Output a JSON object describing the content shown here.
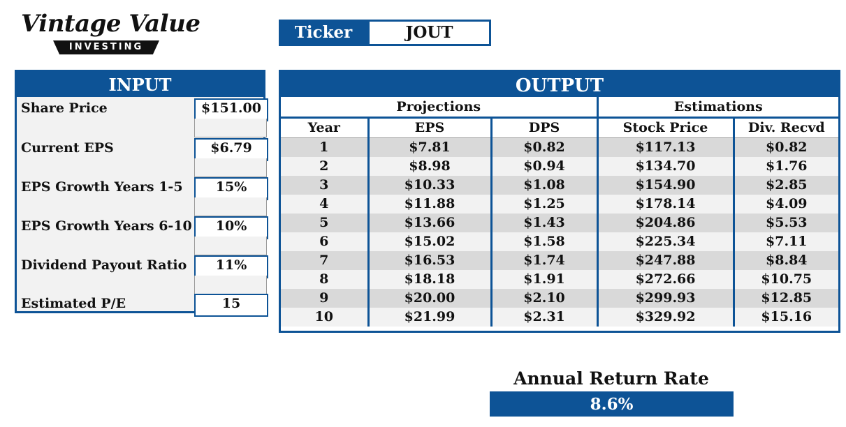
{
  "brand": {
    "script": "Vintage Value",
    "banner": "INVESTING"
  },
  "ticker": {
    "label": "Ticker",
    "value": "JOUT"
  },
  "input": {
    "title": "INPUT",
    "fields": [
      {
        "label": "Share Price",
        "value": "$151.00"
      },
      {
        "label": "Current EPS",
        "value": "$6.79"
      },
      {
        "label": "EPS Growth Years 1-5",
        "value": "15%"
      },
      {
        "label": "EPS Growth Years 6-10",
        "value": "10%"
      },
      {
        "label": "Dividend Payout Ratio",
        "value": "11%"
      },
      {
        "label": "Estimated P/E",
        "value": "15"
      }
    ]
  },
  "output": {
    "title": "OUTPUT",
    "groups": {
      "projections": "Projections",
      "estimations": "Estimations"
    },
    "columns": [
      "Year",
      "EPS",
      "DPS",
      "Stock Price",
      "Div. Recvd"
    ],
    "rows": [
      [
        "1",
        "$7.81",
        "$0.82",
        "$117.13",
        "$0.82"
      ],
      [
        "2",
        "$8.98",
        "$0.94",
        "$134.70",
        "$1.76"
      ],
      [
        "3",
        "$10.33",
        "$1.08",
        "$154.90",
        "$2.85"
      ],
      [
        "4",
        "$11.88",
        "$1.25",
        "$178.14",
        "$4.09"
      ],
      [
        "5",
        "$13.66",
        "$1.43",
        "$204.86",
        "$5.53"
      ],
      [
        "6",
        "$15.02",
        "$1.58",
        "$225.34",
        "$7.11"
      ],
      [
        "7",
        "$16.53",
        "$1.74",
        "$247.88",
        "$8.84"
      ],
      [
        "8",
        "$18.18",
        "$1.91",
        "$272.66",
        "$10.75"
      ],
      [
        "9",
        "$20.00",
        "$2.10",
        "$299.93",
        "$12.85"
      ],
      [
        "10",
        "$21.99",
        "$2.31",
        "$329.92",
        "$15.16"
      ]
    ]
  },
  "annual_return": {
    "label": "Annual Return Rate",
    "value": "8.6%"
  },
  "colors": {
    "accent": "#0d5396",
    "row_shade": "#d9d9d9",
    "panel_bg": "#f2f2f2"
  }
}
